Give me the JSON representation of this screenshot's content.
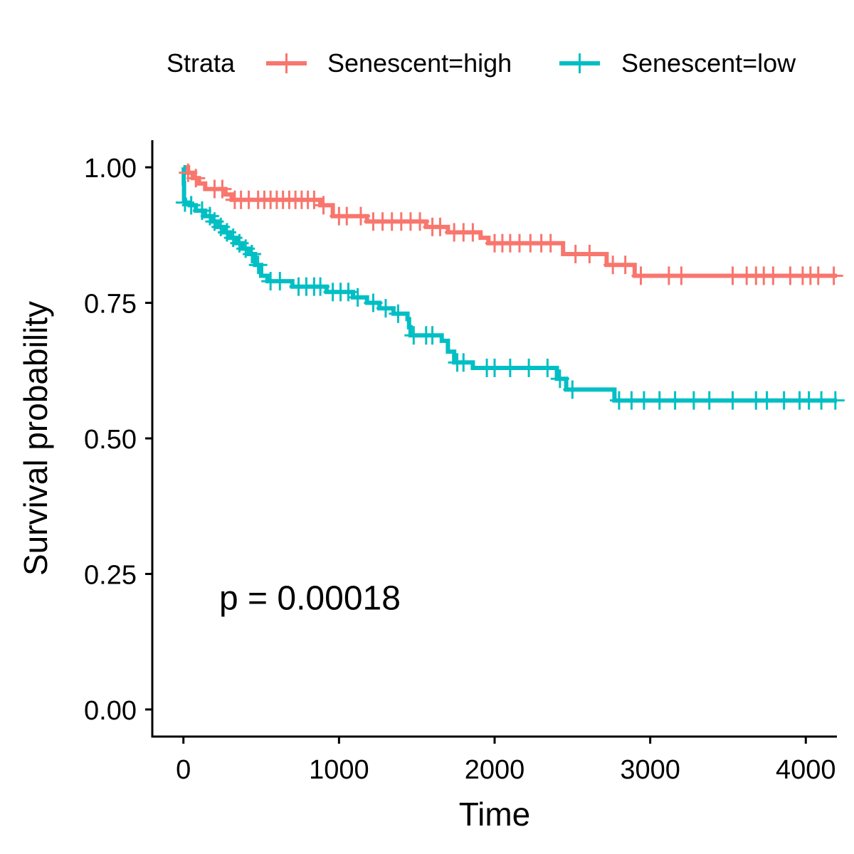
{
  "chart_data": {
    "type": "line",
    "subtype": "kaplan-meier",
    "xlabel": "Time",
    "ylabel": "Survival probability",
    "xlim": [
      -200,
      4200
    ],
    "ylim": [
      -0.05,
      1.05
    ],
    "xticks": [
      0,
      1000,
      2000,
      3000,
      4000
    ],
    "xtick_labels": [
      "0",
      "1000",
      "2000",
      "3000",
      "4000"
    ],
    "yticks": [
      0,
      0.25,
      0.5,
      0.75,
      1.0
    ],
    "ytick_labels": [
      "0.00",
      "0.25",
      "0.50",
      "0.75",
      "1.00"
    ],
    "grid": false,
    "legend": {
      "title": "Strata",
      "position": "top"
    },
    "annotation": {
      "text": "p = 0.00018",
      "x": 230,
      "y": 0.2
    },
    "series": [
      {
        "name": "Senescent=high",
        "color": "#F8766D",
        "steps": [
          [
            0,
            1.0
          ],
          [
            30,
            0.99
          ],
          [
            60,
            0.98
          ],
          [
            100,
            0.97
          ],
          [
            140,
            0.96
          ],
          [
            270,
            0.95
          ],
          [
            310,
            0.94
          ],
          [
            880,
            0.93
          ],
          [
            960,
            0.91
          ],
          [
            1180,
            0.9
          ],
          [
            1560,
            0.89
          ],
          [
            1700,
            0.88
          ],
          [
            1910,
            0.87
          ],
          [
            1960,
            0.86
          ],
          [
            2440,
            0.84
          ],
          [
            2720,
            0.82
          ],
          [
            2900,
            0.8
          ],
          [
            4200,
            0.8
          ]
        ],
        "censors": [
          [
            30,
            0.99
          ],
          [
            80,
            0.98
          ],
          [
            200,
            0.96
          ],
          [
            250,
            0.96
          ],
          [
            330,
            0.94
          ],
          [
            370,
            0.94
          ],
          [
            420,
            0.94
          ],
          [
            480,
            0.94
          ],
          [
            520,
            0.94
          ],
          [
            560,
            0.94
          ],
          [
            600,
            0.94
          ],
          [
            640,
            0.94
          ],
          [
            680,
            0.94
          ],
          [
            720,
            0.94
          ],
          [
            760,
            0.94
          ],
          [
            800,
            0.94
          ],
          [
            840,
            0.94
          ],
          [
            900,
            0.93
          ],
          [
            1000,
            0.91
          ],
          [
            1050,
            0.91
          ],
          [
            1140,
            0.91
          ],
          [
            1220,
            0.9
          ],
          [
            1280,
            0.9
          ],
          [
            1340,
            0.9
          ],
          [
            1400,
            0.9
          ],
          [
            1460,
            0.9
          ],
          [
            1520,
            0.9
          ],
          [
            1600,
            0.89
          ],
          [
            1650,
            0.89
          ],
          [
            1740,
            0.88
          ],
          [
            1800,
            0.88
          ],
          [
            1860,
            0.88
          ],
          [
            2000,
            0.86
          ],
          [
            2050,
            0.86
          ],
          [
            2100,
            0.86
          ],
          [
            2160,
            0.86
          ],
          [
            2230,
            0.86
          ],
          [
            2300,
            0.86
          ],
          [
            2360,
            0.86
          ],
          [
            2520,
            0.84
          ],
          [
            2610,
            0.84
          ],
          [
            2760,
            0.82
          ],
          [
            2840,
            0.82
          ],
          [
            2940,
            0.8
          ],
          [
            3120,
            0.8
          ],
          [
            3200,
            0.8
          ],
          [
            3530,
            0.8
          ],
          [
            3620,
            0.8
          ],
          [
            3680,
            0.8
          ],
          [
            3730,
            0.8
          ],
          [
            3790,
            0.8
          ],
          [
            3900,
            0.8
          ],
          [
            3980,
            0.8
          ],
          [
            4030,
            0.8
          ],
          [
            4080,
            0.8
          ],
          [
            4180,
            0.8
          ]
        ]
      },
      {
        "name": "Senescent=low",
        "color": "#00BFC4",
        "steps": [
          [
            0,
            1.0
          ],
          [
            2,
            0.97
          ],
          [
            4,
            0.94
          ],
          [
            10,
            0.935
          ],
          [
            40,
            0.93
          ],
          [
            80,
            0.92
          ],
          [
            140,
            0.91
          ],
          [
            180,
            0.9
          ],
          [
            220,
            0.89
          ],
          [
            260,
            0.88
          ],
          [
            300,
            0.87
          ],
          [
            340,
            0.86
          ],
          [
            380,
            0.85
          ],
          [
            420,
            0.84
          ],
          [
            460,
            0.82
          ],
          [
            500,
            0.8
          ],
          [
            540,
            0.79
          ],
          [
            700,
            0.78
          ],
          [
            920,
            0.77
          ],
          [
            1090,
            0.76
          ],
          [
            1180,
            0.75
          ],
          [
            1260,
            0.74
          ],
          [
            1350,
            0.73
          ],
          [
            1440,
            0.72
          ],
          [
            1450,
            0.705
          ],
          [
            1460,
            0.69
          ],
          [
            1660,
            0.68
          ],
          [
            1700,
            0.66
          ],
          [
            1740,
            0.64
          ],
          [
            1860,
            0.63
          ],
          [
            2400,
            0.61
          ],
          [
            2460,
            0.59
          ],
          [
            2770,
            0.57
          ],
          [
            4200,
            0.57
          ]
        ],
        "censors": [
          [
            10,
            0.935
          ],
          [
            50,
            0.93
          ],
          [
            120,
            0.92
          ],
          [
            170,
            0.91
          ],
          [
            200,
            0.9
          ],
          [
            240,
            0.89
          ],
          [
            280,
            0.88
          ],
          [
            320,
            0.87
          ],
          [
            360,
            0.86
          ],
          [
            400,
            0.85
          ],
          [
            440,
            0.84
          ],
          [
            480,
            0.82
          ],
          [
            560,
            0.79
          ],
          [
            620,
            0.79
          ],
          [
            740,
            0.78
          ],
          [
            790,
            0.78
          ],
          [
            840,
            0.78
          ],
          [
            880,
            0.78
          ],
          [
            960,
            0.77
          ],
          [
            1010,
            0.77
          ],
          [
            1060,
            0.77
          ],
          [
            1120,
            0.76
          ],
          [
            1220,
            0.75
          ],
          [
            1300,
            0.74
          ],
          [
            1380,
            0.73
          ],
          [
            1480,
            0.69
          ],
          [
            1560,
            0.69
          ],
          [
            1600,
            0.69
          ],
          [
            1760,
            0.64
          ],
          [
            1800,
            0.64
          ],
          [
            1950,
            0.63
          ],
          [
            2000,
            0.63
          ],
          [
            2100,
            0.63
          ],
          [
            2220,
            0.63
          ],
          [
            2340,
            0.63
          ],
          [
            2420,
            0.61
          ],
          [
            2500,
            0.59
          ],
          [
            2800,
            0.57
          ],
          [
            2880,
            0.57
          ],
          [
            2960,
            0.57
          ],
          [
            3060,
            0.57
          ],
          [
            3160,
            0.57
          ],
          [
            3280,
            0.57
          ],
          [
            3380,
            0.57
          ],
          [
            3530,
            0.57
          ],
          [
            3680,
            0.57
          ],
          [
            3750,
            0.57
          ],
          [
            3860,
            0.57
          ],
          [
            3960,
            0.57
          ],
          [
            4020,
            0.57
          ],
          [
            4100,
            0.57
          ],
          [
            4190,
            0.57
          ]
        ]
      }
    ]
  }
}
